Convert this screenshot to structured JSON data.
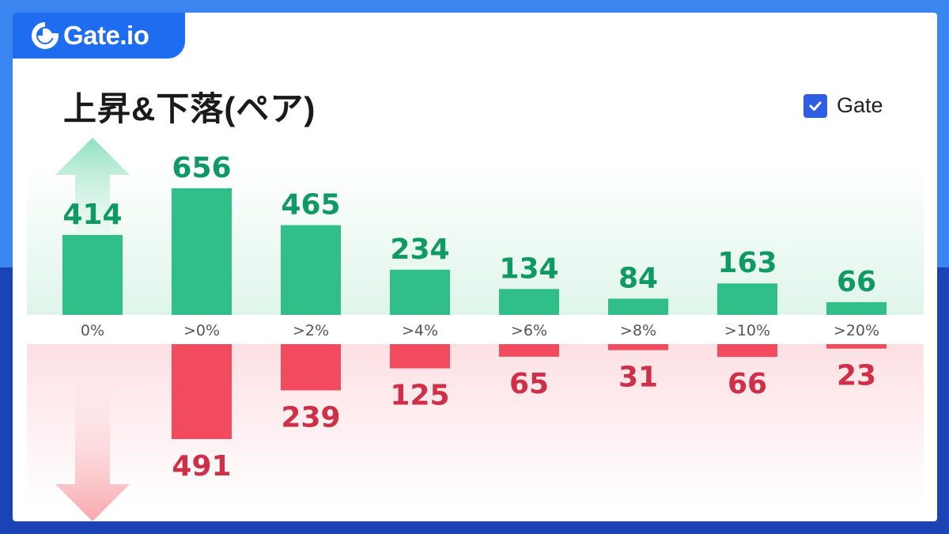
{
  "brand": {
    "logo_text": "Gate.io"
  },
  "header": {
    "title": "上昇&下落(ペア)"
  },
  "legend": {
    "label": "Gate",
    "checked": true
  },
  "colors": {
    "up": "#30bf88",
    "up_label": "#0f9a63",
    "down": "#f24a5e",
    "down_label": "#cf3048",
    "accent": "#2f5fe0"
  },
  "chart_data": {
    "type": "bar",
    "title": "上昇&下落(ペア)",
    "categories": [
      "0%",
      ">0%",
      ">2%",
      ">4%",
      ">6%",
      ">8%",
      ">10%",
      ">20%"
    ],
    "series": [
      {
        "name": "上昇",
        "values": [
          414,
          656,
          465,
          234,
          134,
          84,
          163,
          66
        ]
      },
      {
        "name": "下落",
        "values": [
          0,
          491,
          239,
          125,
          65,
          31,
          66,
          23
        ]
      }
    ],
    "legend": [
      "Gate"
    ]
  }
}
